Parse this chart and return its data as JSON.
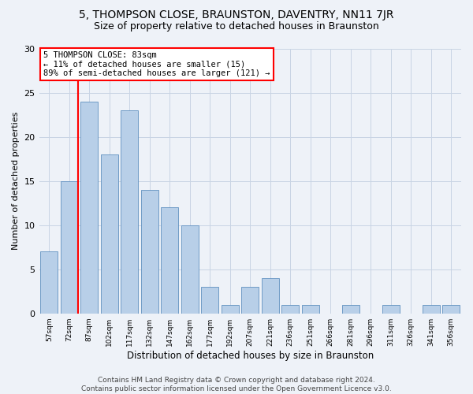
{
  "title": "5, THOMPSON CLOSE, BRAUNSTON, DAVENTRY, NN11 7JR",
  "subtitle": "Size of property relative to detached houses in Braunston",
  "xlabel": "Distribution of detached houses by size in Braunston",
  "ylabel": "Number of detached properties",
  "bar_labels": [
    "57sqm",
    "72sqm",
    "87sqm",
    "102sqm",
    "117sqm",
    "132sqm",
    "147sqm",
    "162sqm",
    "177sqm",
    "192sqm",
    "207sqm",
    "221sqm",
    "236sqm",
    "251sqm",
    "266sqm",
    "281sqm",
    "296sqm",
    "311sqm",
    "326sqm",
    "341sqm",
    "356sqm"
  ],
  "bar_values": [
    7,
    15,
    24,
    18,
    23,
    14,
    12,
    10,
    3,
    1,
    3,
    4,
    1,
    1,
    0,
    1,
    0,
    1,
    0,
    1,
    1
  ],
  "bar_color": "#b8cfe8",
  "bar_edge_color": "#6090c0",
  "annotation_line1": "5 THOMPSON CLOSE: 83sqm",
  "annotation_line2": "← 11% of detached houses are smaller (15)",
  "annotation_line3": "89% of semi-detached houses are larger (121) →",
  "annotation_box_color": "white",
  "annotation_box_edge_color": "red",
  "vline_color": "red",
  "vline_index": 1,
  "ylim": [
    0,
    30
  ],
  "yticks": [
    0,
    5,
    10,
    15,
    20,
    25,
    30
  ],
  "grid_color": "#c8d4e4",
  "background_color": "#eef2f8",
  "footer_text": "Contains HM Land Registry data © Crown copyright and database right 2024.\nContains public sector information licensed under the Open Government Licence v3.0.",
  "title_fontsize": 10,
  "subtitle_fontsize": 9,
  "annotation_fontsize": 7.5,
  "footer_fontsize": 6.5,
  "ylabel_fontsize": 8,
  "xlabel_fontsize": 8.5
}
